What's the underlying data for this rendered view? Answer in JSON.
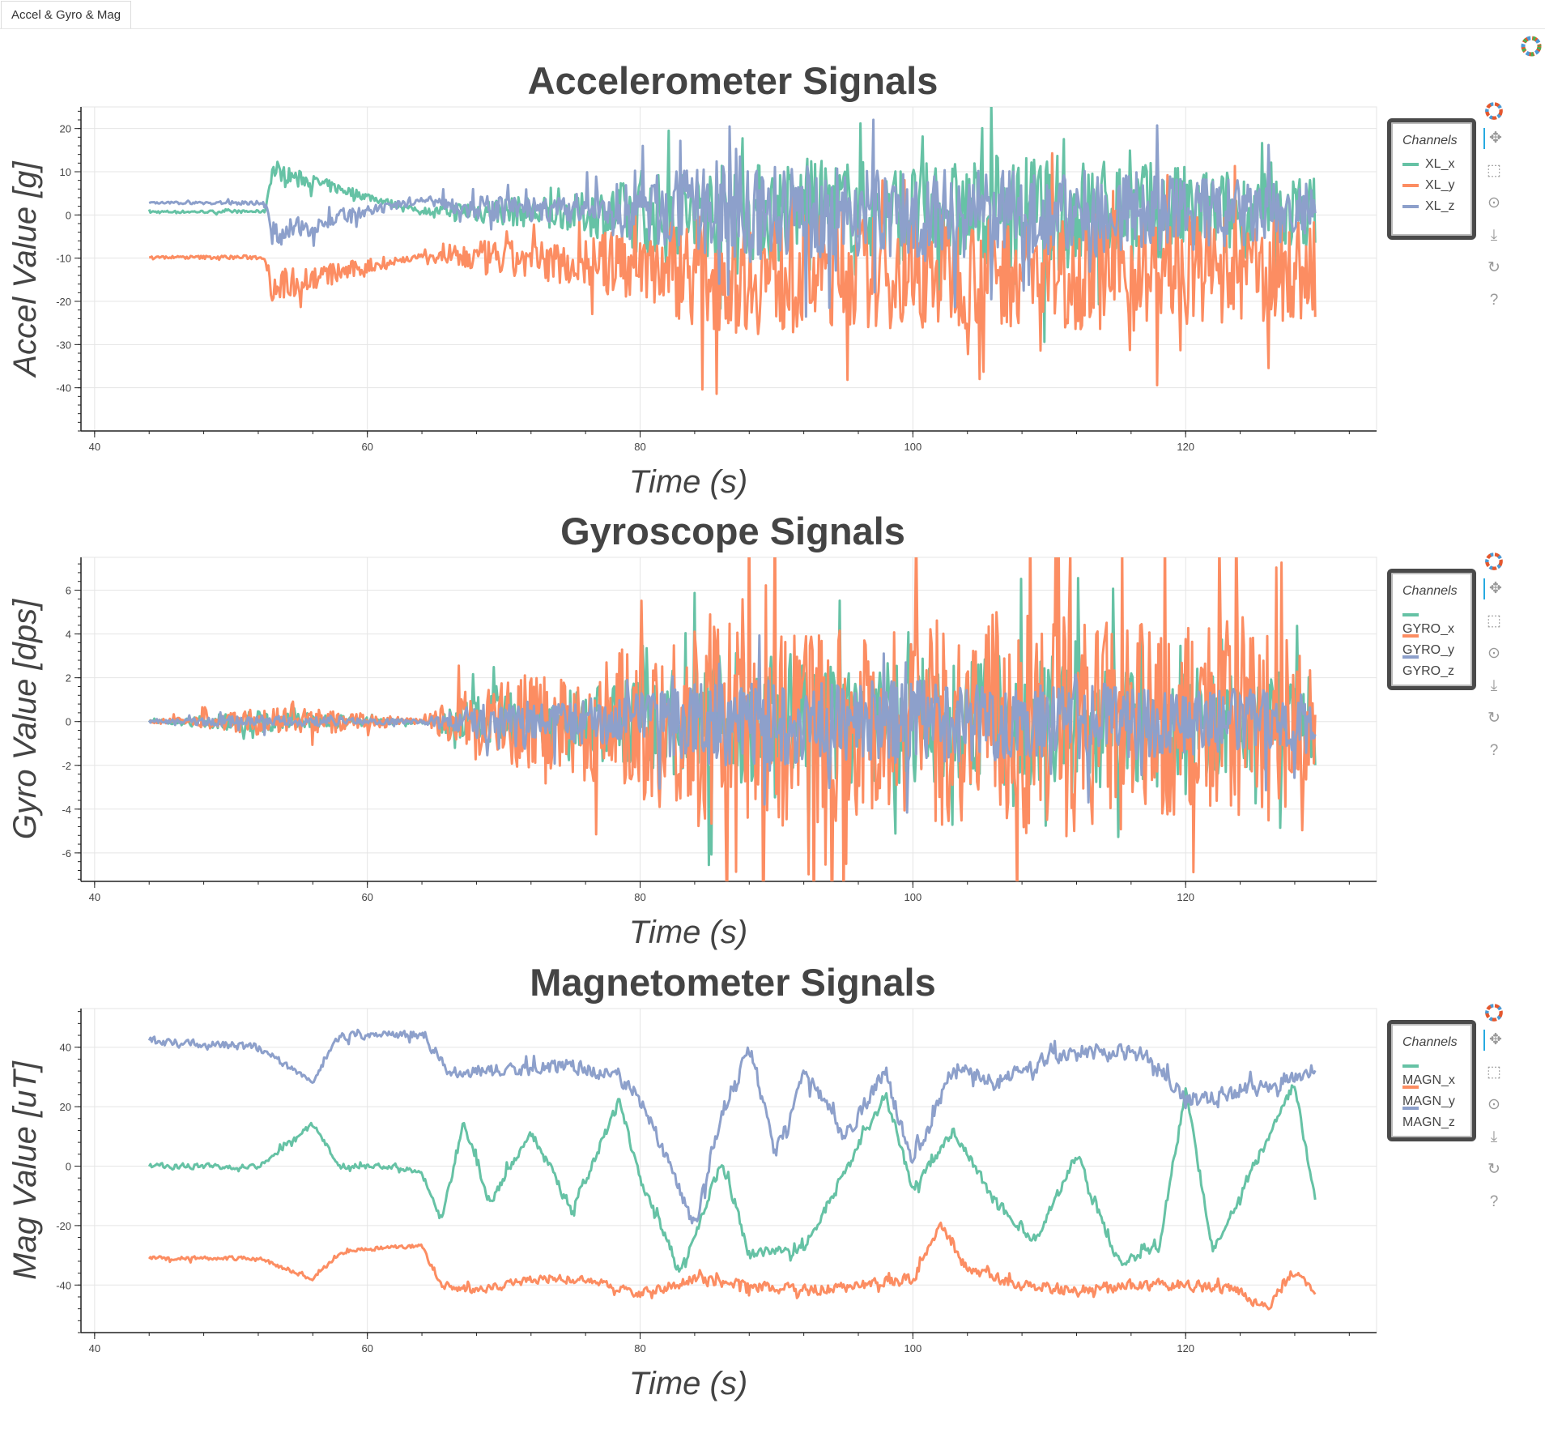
{
  "tab": {
    "label": "Accel & Gyro & Mag"
  },
  "colors": {
    "x": "#66c2a5",
    "y": "#fc8d62",
    "z": "#8da0cb"
  },
  "icons": [
    "bokeh-logo-icon",
    "pan-icon",
    "box-zoom-icon",
    "wheel-zoom-icon",
    "save-icon",
    "reset-icon",
    "help-icon"
  ],
  "chart_data": [
    {
      "type": "line",
      "title": "Accelerometer Signals",
      "xlabel": "Time (s)",
      "ylabel": "Accel Value [g]",
      "xlim": [
        39,
        134
      ],
      "ylim": [
        -50,
        25
      ],
      "x_ticks": [
        40,
        60,
        80,
        100,
        120
      ],
      "y_ticks": [
        -40,
        -30,
        -20,
        -10,
        0,
        10,
        20
      ],
      "grid": true,
      "legend_title": "Channels",
      "legend_position": "right",
      "series": [
        {
          "name": "XL_x",
          "color": "#66c2a5",
          "x": [
            44,
            52.5,
            53,
            64,
            68,
            75,
            80,
            85,
            90,
            95,
            100,
            105,
            110,
            115,
            120,
            125,
            129.5
          ],
          "y": [
            0.7,
            0.8,
            10.3,
            0.8,
            1.0,
            0.5,
            0.0,
            1.0,
            0.5,
            2.0,
            0.0,
            1.0,
            0.5,
            1.0,
            0.5,
            0.0,
            1.0
          ],
          "spread": [
            0.3,
            0.3,
            2,
            0.4,
            3,
            4,
            9,
            11,
            12,
            11,
            12,
            12,
            14,
            12,
            11,
            10,
            8
          ]
        },
        {
          "name": "XL_y",
          "color": "#fc8d62",
          "x": [
            44,
            52.5,
            53,
            64,
            68,
            75,
            80,
            85,
            90,
            95,
            100,
            105,
            110,
            115,
            120,
            125,
            129.5
          ],
          "y": [
            -9.8,
            -9.8,
            -16.5,
            -9.5,
            -10.0,
            -11.0,
            -11.0,
            -13.0,
            -14.0,
            -13.0,
            -13.0,
            -13.0,
            -13.0,
            -13.0,
            -13.0,
            -13.0,
            -13.0
          ],
          "spread": [
            0.3,
            0.5,
            4,
            0.5,
            4,
            5,
            9,
            14,
            14,
            13,
            14,
            13,
            13,
            14,
            13,
            12,
            12
          ]
        },
        {
          "name": "XL_z",
          "color": "#8da0cb",
          "x": [
            44,
            52.5,
            53,
            64,
            68,
            75,
            80,
            85,
            90,
            95,
            100,
            105,
            110,
            115,
            120,
            125,
            129.5
          ],
          "y": [
            2.8,
            2.8,
            -4.5,
            3.5,
            1.5,
            1.0,
            1.0,
            1.0,
            0.0,
            1.0,
            0.0,
            0.5,
            0.0,
            1.0,
            0.5,
            0.0,
            0.5
          ],
          "spread": [
            0.2,
            0.5,
            3,
            0.5,
            3,
            3,
            8,
            10,
            12,
            10,
            11,
            10,
            10,
            10,
            9,
            8,
            7
          ]
        }
      ]
    },
    {
      "type": "line",
      "title": "Gyroscope Signals",
      "xlabel": "Time (s)",
      "ylabel": "Gyro Value [dps]",
      "xlim": [
        39,
        134
      ],
      "ylim": [
        -7.3,
        7.5
      ],
      "x_ticks": [
        40,
        60,
        80,
        100,
        120
      ],
      "y_ticks": [
        -6,
        -4,
        -2,
        0,
        2,
        4,
        6
      ],
      "grid": true,
      "legend_title": "Channels",
      "legend_position": "right",
      "series": [
        {
          "name": "GYRO_x",
          "color": "#66c2a5",
          "x": [
            44,
            52,
            56,
            64,
            68,
            75,
            80,
            85,
            90,
            95,
            100,
            105,
            110,
            115,
            120,
            125,
            129.5
          ],
          "y": [
            0,
            0,
            0,
            0,
            0,
            0,
            0,
            0,
            0,
            0,
            0,
            0,
            0,
            0,
            0,
            0,
            0
          ],
          "spread": [
            0.05,
            0.5,
            0.3,
            0.1,
            1.2,
            1.5,
            2,
            3,
            3.5,
            3,
            3,
            3,
            3,
            3,
            2.5,
            2.5,
            2
          ]
        },
        {
          "name": "GYRO_y",
          "color": "#fc8d62",
          "x": [
            44,
            52,
            56,
            64,
            68,
            75,
            80,
            85,
            90,
            95,
            100,
            105,
            110,
            115,
            120,
            125,
            129.5
          ],
          "y": [
            0,
            0,
            0,
            0,
            0,
            0,
            0,
            0,
            0,
            0,
            0,
            0,
            0,
            0,
            0,
            0,
            0
          ],
          "spread": [
            0.05,
            0.6,
            0.6,
            0.1,
            1.8,
            2.5,
            3.5,
            5,
            5,
            4.5,
            4.5,
            5,
            5.5,
            4.5,
            4.5,
            5,
            3
          ]
        },
        {
          "name": "GYRO_z",
          "color": "#8da0cb",
          "x": [
            44,
            52,
            56,
            64,
            68,
            75,
            80,
            85,
            90,
            95,
            100,
            105,
            110,
            115,
            120,
            125,
            129.5
          ],
          "y": [
            0,
            0,
            0,
            0,
            0,
            0,
            0,
            0,
            0,
            0,
            0,
            0,
            0,
            0,
            0,
            0,
            0
          ],
          "spread": [
            0.05,
            0.3,
            0.2,
            0.1,
            0.8,
            1,
            1.3,
            2,
            2,
            1.8,
            2,
            1.8,
            1.8,
            1.8,
            1.5,
            1.5,
            1.2
          ]
        }
      ]
    },
    {
      "type": "line",
      "title": "Magnetometer Signals",
      "xlabel": "Time (s)",
      "ylabel": "Mag Value [uT]",
      "xlim": [
        39,
        134
      ],
      "ylim": [
        -56,
        53
      ],
      "x_ticks": [
        40,
        60,
        80,
        100,
        120
      ],
      "y_ticks": [
        -40,
        -20,
        0,
        20,
        40
      ],
      "grid": true,
      "legend_title": "Channels",
      "legend_position": "right",
      "series": [
        {
          "name": "MAGN_x",
          "color": "#66c2a5",
          "x": [
            44,
            52,
            56,
            58,
            62,
            64,
            65.5,
            67,
            69,
            72,
            75,
            78.5,
            80,
            83,
            86,
            88,
            92,
            95,
            98,
            100,
            103,
            106,
            109,
            112,
            115,
            118,
            120,
            122,
            125,
            128,
            129.5
          ],
          "y": [
            0,
            0,
            14,
            0,
            0,
            -2,
            -18,
            15,
            -12,
            12,
            -15,
            22,
            -5,
            -36,
            2,
            -30,
            -28,
            -2,
            24,
            -8,
            12,
            -12,
            -25,
            4,
            -32,
            -28,
            25,
            -28,
            0,
            28,
            -12
          ],
          "spread": [
            2,
            2,
            2,
            2,
            2,
            2,
            3,
            4,
            4,
            4,
            4,
            4,
            4,
            4,
            4,
            4,
            4,
            4,
            4,
            4,
            4,
            4,
            4,
            4,
            4,
            4,
            4,
            4,
            4,
            4,
            3
          ]
        },
        {
          "name": "MAGN_y",
          "color": "#fc8d62",
          "x": [
            44,
            52,
            56,
            58,
            62,
            64,
            65.5,
            68,
            72,
            76,
            80,
            84,
            88,
            92,
            96,
            100,
            102,
            104,
            108,
            112,
            116,
            120,
            124,
            126,
            128,
            129.5
          ],
          "y": [
            -31,
            -31,
            -38,
            -29,
            -27,
            -27,
            -40,
            -42,
            -38,
            -38,
            -43,
            -38,
            -40,
            -42,
            -40,
            -38,
            -20,
            -35,
            -40,
            -42,
            -40,
            -40,
            -42,
            -48,
            -35,
            -42
          ],
          "spread": [
            1.5,
            1.5,
            1.5,
            1.5,
            1.5,
            1.5,
            3,
            3,
            3,
            3,
            3,
            4,
            4,
            4,
            4,
            4,
            4,
            4,
            4,
            4,
            4,
            4,
            4,
            4,
            4,
            3
          ]
        },
        {
          "name": "MAGN_z",
          "color": "#8da0cb",
          "x": [
            44,
            52,
            56,
            58,
            62,
            64,
            66,
            70,
            75,
            78,
            80,
            84,
            86,
            88,
            90,
            92,
            95,
            98,
            100,
            103,
            106,
            110,
            114,
            117,
            120,
            125,
            129.5
          ],
          "y": [
            42,
            40,
            28,
            44,
            44,
            44,
            32,
            32,
            34,
            30,
            24,
            -20,
            18,
            40,
            5,
            32,
            10,
            32,
            0,
            34,
            28,
            36,
            38,
            38,
            22,
            26,
            32
          ],
          "spread": [
            3,
            3,
            2,
            3,
            3,
            3,
            4,
            5,
            5,
            5,
            5,
            6,
            6,
            6,
            6,
            6,
            6,
            6,
            6,
            6,
            6,
            6,
            6,
            6,
            6,
            6,
            4
          ]
        }
      ]
    }
  ]
}
